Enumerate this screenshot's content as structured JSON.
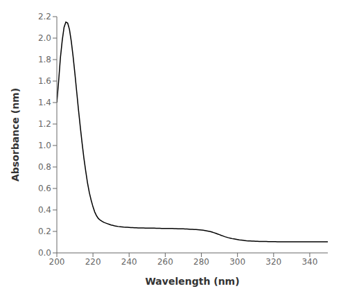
{
  "chart_data": {
    "type": "line",
    "xlabel": "Wavelength (nm)",
    "ylabel": "Absorbance (nm)",
    "color": "#000000",
    "grid": false,
    "xlim": [
      200,
      350
    ],
    "ylim": [
      0.0,
      2.2
    ],
    "xticks": [
      200,
      220,
      240,
      260,
      280,
      300,
      320,
      340
    ],
    "yticks": [
      {
        "value": 0.0,
        "label": "0.0"
      },
      0.2,
      0.4,
      0.6,
      0.8,
      {
        "value": 1.0,
        "label": "1.0"
      },
      1.2,
      1.4,
      1.6,
      1.8,
      {
        "value": 2.0,
        "label": "2.0"
      },
      2.2
    ],
    "x": [
      200,
      201,
      202,
      203,
      204,
      205,
      206,
      207,
      208,
      209,
      210,
      211,
      212,
      213,
      214,
      215,
      216,
      217,
      218,
      219,
      220,
      221,
      222,
      223,
      224,
      225,
      226,
      227,
      228,
      229,
      230,
      231,
      232,
      233,
      234,
      235,
      236,
      237,
      238,
      239,
      240,
      241,
      242,
      243,
      244,
      245,
      246,
      247,
      248,
      249,
      250,
      251,
      252,
      253,
      254,
      255,
      256,
      257,
      258,
      259,
      260,
      261,
      262,
      263,
      264,
      265,
      266,
      267,
      268,
      269,
      270,
      271,
      272,
      273,
      274,
      275,
      276,
      277,
      278,
      279,
      280,
      281,
      282,
      283,
      284,
      285,
      286,
      287,
      288,
      289,
      290,
      291,
      292,
      293,
      294,
      295,
      296,
      297,
      298,
      299,
      300,
      301,
      302,
      303,
      304,
      305,
      306,
      307,
      308,
      309,
      310,
      311,
      312,
      313,
      314,
      315,
      316,
      317,
      318,
      319,
      320,
      321,
      322,
      323,
      324,
      325,
      326,
      327,
      328,
      329,
      330,
      331,
      332,
      333,
      334,
      335,
      336,
      337,
      338,
      339,
      340,
      341,
      342,
      343,
      344,
      345,
      346,
      347,
      348,
      349,
      350
    ],
    "values": [
      1.4,
      1.6,
      1.82,
      1.98,
      2.1,
      2.15,
      2.14,
      2.08,
      1.97,
      1.83,
      1.67,
      1.5,
      1.33,
      1.17,
      1.02,
      0.88,
      0.76,
      0.65,
      0.56,
      0.49,
      0.43,
      0.38,
      0.345,
      0.32,
      0.305,
      0.295,
      0.285,
      0.278,
      0.272,
      0.266,
      0.26,
      0.256,
      0.252,
      0.249,
      0.246,
      0.244,
      0.242,
      0.24,
      0.239,
      0.238,
      0.237,
      0.236,
      0.235,
      0.234,
      0.234,
      0.233,
      0.233,
      0.232,
      0.232,
      0.231,
      0.231,
      0.231,
      0.23,
      0.23,
      0.23,
      0.229,
      0.229,
      0.229,
      0.228,
      0.228,
      0.228,
      0.228,
      0.227,
      0.227,
      0.227,
      0.226,
      0.226,
      0.225,
      0.225,
      0.224,
      0.224,
      0.223,
      0.222,
      0.221,
      0.22,
      0.219,
      0.218,
      0.217,
      0.216,
      0.215,
      0.213,
      0.211,
      0.208,
      0.205,
      0.202,
      0.198,
      0.193,
      0.188,
      0.182,
      0.176,
      0.17,
      0.163,
      0.157,
      0.151,
      0.146,
      0.141,
      0.137,
      0.133,
      0.13,
      0.127,
      0.124,
      0.121,
      0.119,
      0.117,
      0.115,
      0.113,
      0.112,
      0.111,
      0.11,
      0.109,
      0.108,
      0.108,
      0.107,
      0.107,
      0.106,
      0.106,
      0.106,
      0.105,
      0.105,
      0.105,
      0.105,
      0.105,
      0.104,
      0.104,
      0.104,
      0.104,
      0.104,
      0.104,
      0.104,
      0.104,
      0.104,
      0.104,
      0.104,
      0.104,
      0.104,
      0.104,
      0.104,
      0.104,
      0.104,
      0.104,
      0.104,
      0.104,
      0.104,
      0.104,
      0.104,
      0.104,
      0.104,
      0.104,
      0.104,
      0.104,
      0.104
    ]
  }
}
